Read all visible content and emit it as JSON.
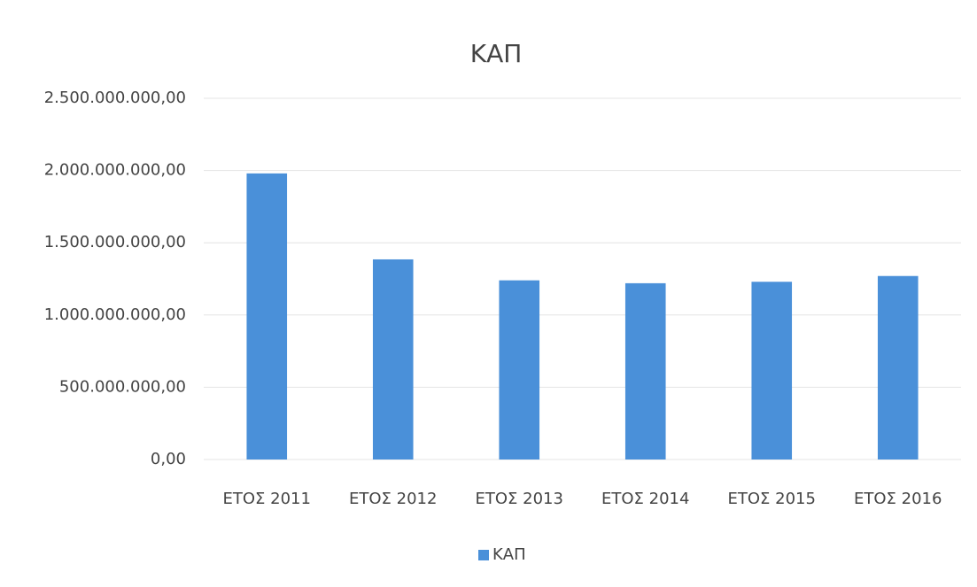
{
  "chart_data": {
    "type": "bar",
    "title": "ΚΑΠ",
    "categories": [
      "ΕΤΟΣ 2011",
      "ΕΤΟΣ 2012",
      "ΕΤΟΣ 2013",
      "ΕΤΟΣ 2014",
      "ΕΤΟΣ 2015",
      "ΕΤΟΣ 2016"
    ],
    "series": [
      {
        "name": "ΚΑΠ",
        "color": "#4a90d9",
        "values": [
          1980000000,
          1385000000,
          1240000000,
          1220000000,
          1230000000,
          1270000000
        ]
      }
    ],
    "ylim": [
      0,
      2500000000
    ],
    "yticks": [
      {
        "value": 0,
        "label": "0,00"
      },
      {
        "value": 500000000,
        "label": "500.000.000,00"
      },
      {
        "value": 1000000000,
        "label": "1.000.000.000,00"
      },
      {
        "value": 1500000000,
        "label": "1.500.000.000,00"
      },
      {
        "value": 2000000000,
        "label": "2.000.000.000,00"
      },
      {
        "value": 2500000000,
        "label": "2.500.000.000,00"
      }
    ],
    "grid": true,
    "legend": "bottom"
  }
}
